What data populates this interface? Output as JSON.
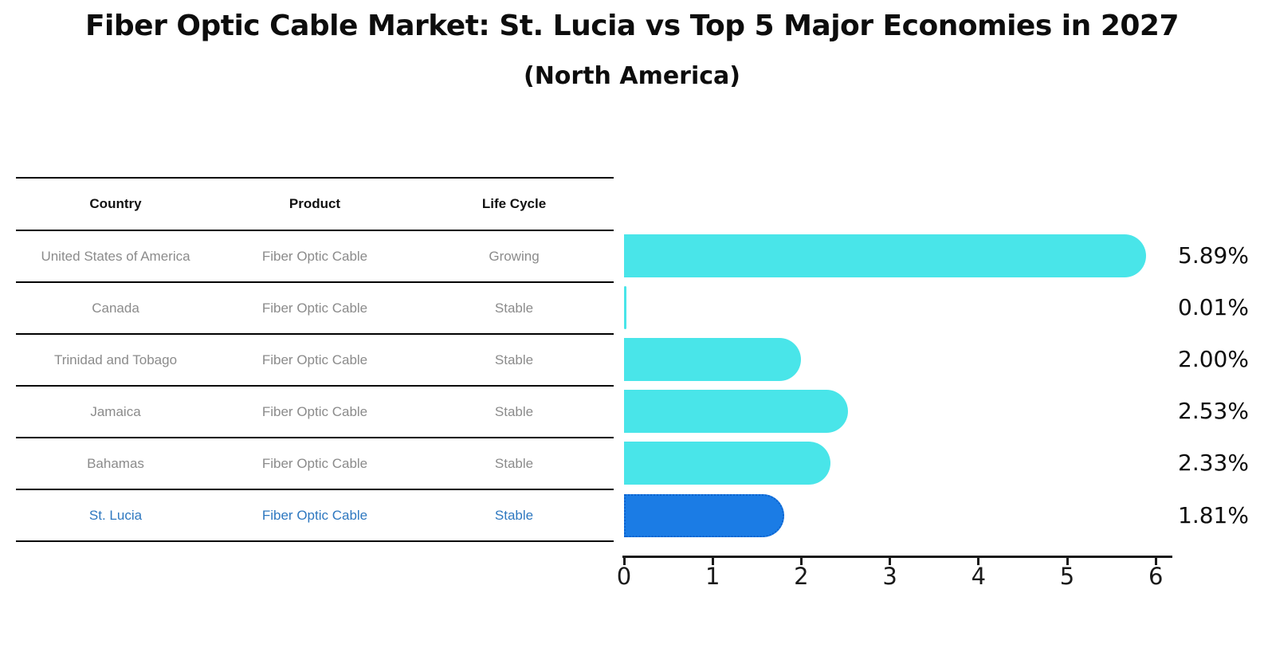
{
  "title": "Fiber Optic Cable Market: St. Lucia vs Top 5 Major Economies in 2027",
  "subtitle": "(North America)",
  "table": {
    "headers": [
      "Country",
      "Product",
      "Life Cycle"
    ],
    "rows": [
      {
        "country": "United States of America",
        "product": "Fiber Optic Cable",
        "life_cycle": "Growing",
        "highlight": false
      },
      {
        "country": "Canada",
        "product": "Fiber Optic Cable",
        "life_cycle": "Stable",
        "highlight": false
      },
      {
        "country": "Trinidad and Tobago",
        "product": "Fiber Optic Cable",
        "life_cycle": "Stable",
        "highlight": false
      },
      {
        "country": "Jamaica",
        "product": "Fiber Optic Cable",
        "life_cycle": "Stable",
        "highlight": false
      },
      {
        "country": "Bahamas",
        "product": "Fiber Optic Cable",
        "life_cycle": "Stable",
        "highlight": false
      },
      {
        "country": "St. Lucia",
        "product": "Fiber Optic Cable",
        "life_cycle": "Stable",
        "highlight": true
      }
    ]
  },
  "chart_data": {
    "type": "bar",
    "orientation": "horizontal",
    "title": "Fiber Optic Cable Market: St. Lucia vs Top 5 Major Economies in 2027",
    "subtitle": "(North America)",
    "categories": [
      "United States of America",
      "Canada",
      "Trinidad and Tobago",
      "Jamaica",
      "Bahamas",
      "St. Lucia"
    ],
    "values": [
      5.89,
      0.01,
      2.0,
      2.53,
      2.33,
      1.81
    ],
    "value_labels": [
      "5.89%",
      "0.01%",
      "2.00%",
      "2.53%",
      "2.33%",
      "1.81%"
    ],
    "x_ticks": [
      "0",
      "1",
      "2",
      "3",
      "4",
      "5",
      "6"
    ],
    "xlim": [
      0,
      6.2
    ],
    "grid": false,
    "legend": false,
    "highlight_index": 5
  },
  "colors": {
    "bar": "#49E5E9",
    "highlight_bar": "#1B7CE5",
    "highlight_border": "#0C63CF",
    "highlight_text": "#2E78C0",
    "table_text": "#8B8B8B",
    "heading_text": "#111111",
    "axis": "#1A1A1A"
  }
}
